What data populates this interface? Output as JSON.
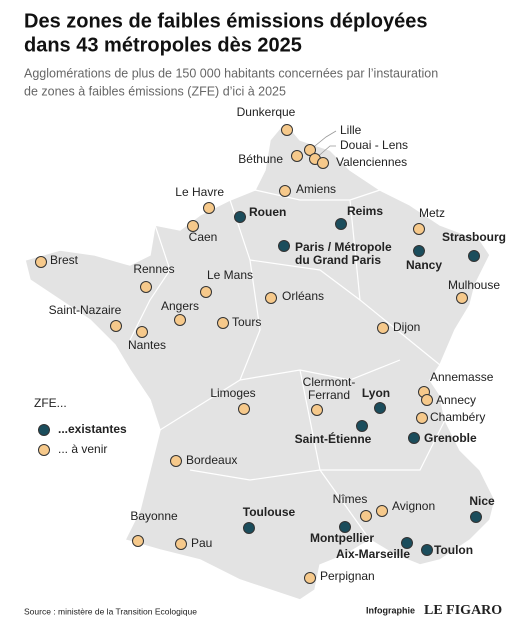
{
  "header": {
    "title": [
      "Des zones de faibles émissions déployées",
      "dans 43 métropoles dès 2025"
    ],
    "subtitle": [
      "Agglomérations de plus de 150 000 habitants concernées par l’instauration",
      "de zones à faibles émissions (ZFE) d’ici à 2025"
    ]
  },
  "legend": {
    "title": "ZFE...",
    "items": [
      {
        "label": "...existantes",
        "status": "existing",
        "color": "#1b4d5c"
      },
      {
        "label": "... à venir",
        "status": "planned",
        "color": "#f6c98b"
      }
    ]
  },
  "cities": [
    {
      "lines": [
        "Rouen"
      ],
      "status": "existing"
    },
    {
      "lines": [
        "Reims"
      ],
      "status": "existing"
    },
    {
      "lines": [
        "Paris / Métropole",
        "du Grand Paris"
      ],
      "status": "existing"
    },
    {
      "lines": [
        "Strasbourg"
      ],
      "status": "existing"
    },
    {
      "lines": [
        "Nancy"
      ],
      "status": "existing"
    },
    {
      "lines": [
        "Lyon"
      ],
      "status": "existing"
    },
    {
      "lines": [
        "Saint-Étienne"
      ],
      "status": "existing"
    },
    {
      "lines": [
        "Grenoble"
      ],
      "status": "existing"
    },
    {
      "lines": [
        "Toulouse"
      ],
      "status": "existing"
    },
    {
      "lines": [
        "Montpellier"
      ],
      "status": "existing"
    },
    {
      "lines": [
        "Aix-Marseille"
      ],
      "status": "existing"
    },
    {
      "lines": [
        "Toulon"
      ],
      "status": "existing"
    },
    {
      "lines": [
        "Nice"
      ],
      "status": "existing"
    },
    {
      "lines": [
        "Dunkerque"
      ],
      "status": "planned"
    },
    {
      "lines": [
        "Lille"
      ],
      "status": "planned"
    },
    {
      "lines": [
        "Douai - Lens"
      ],
      "status": "planned"
    },
    {
      "lines": [
        "Valenciennes"
      ],
      "status": "planned"
    },
    {
      "lines": [
        "Béthune"
      ],
      "status": "planned"
    },
    {
      "lines": [
        "Amiens"
      ],
      "status": "planned"
    },
    {
      "lines": [
        "Le Havre"
      ],
      "status": "planned"
    },
    {
      "lines": [
        "Caen"
      ],
      "status": "planned"
    },
    {
      "lines": [
        "Brest"
      ],
      "status": "planned"
    },
    {
      "lines": [
        "Rennes"
      ],
      "status": "planned"
    },
    {
      "lines": [
        "Le Mans"
      ],
      "status": "planned"
    },
    {
      "lines": [
        "Angers"
      ],
      "status": "planned"
    },
    {
      "lines": [
        "Saint-Nazaire"
      ],
      "status": "planned"
    },
    {
      "lines": [
        "Nantes"
      ],
      "status": "planned"
    },
    {
      "lines": [
        "Tours"
      ],
      "status": "planned"
    },
    {
      "lines": [
        "Orléans"
      ],
      "status": "planned"
    },
    {
      "lines": [
        "Metz"
      ],
      "status": "planned"
    },
    {
      "lines": [
        "Mulhouse"
      ],
      "status": "planned"
    },
    {
      "lines": [
        "Dijon"
      ],
      "status": "planned"
    },
    {
      "lines": [
        "Limoges"
      ],
      "status": "planned"
    },
    {
      "lines": [
        "Clermont-",
        "Ferrand"
      ],
      "status": "planned"
    },
    {
      "lines": [
        "Annemasse"
      ],
      "status": "planned"
    },
    {
      "lines": [
        "Annecy"
      ],
      "status": "planned"
    },
    {
      "lines": [
        "Chambéry"
      ],
      "status": "planned"
    },
    {
      "lines": [
        "Bordeaux"
      ],
      "status": "planned"
    },
    {
      "lines": [
        "Nîmes"
      ],
      "status": "planned"
    },
    {
      "lines": [
        "Avignon"
      ],
      "status": "planned"
    },
    {
      "lines": [
        "Bayonne"
      ],
      "status": "planned"
    },
    {
      "lines": [
        "Pau"
      ],
      "status": "planned"
    },
    {
      "lines": [
        "Perpignan"
      ],
      "status": "planned"
    }
  ],
  "footer": {
    "source": "Source : ministère de la Transition Ecologique",
    "credit": "Infographie",
    "brand": "LE FIGARO"
  }
}
